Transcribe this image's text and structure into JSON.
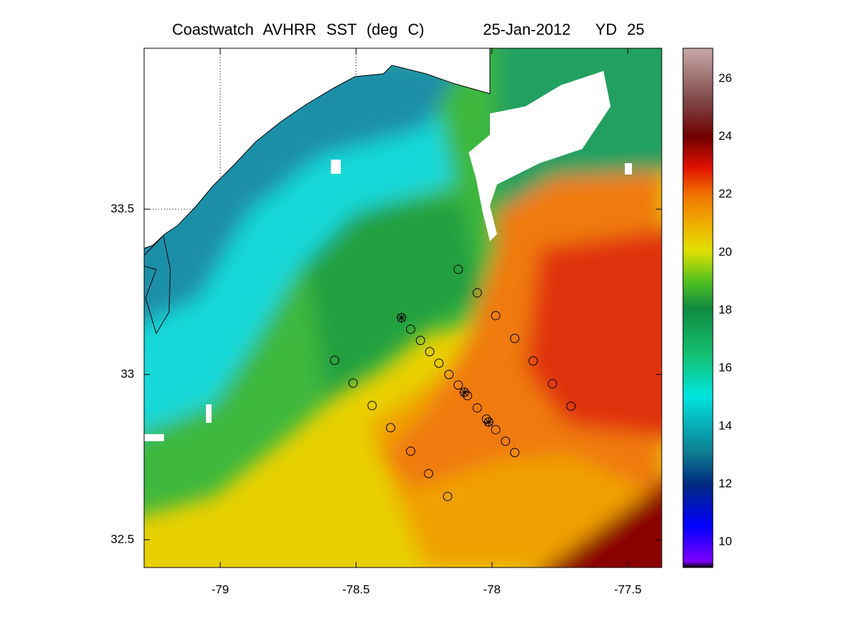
{
  "chart_data": {
    "type": "map",
    "title": "Coastwatch AVHRR SST (deg C)",
    "date": "25-Jan-2012",
    "yearday": "YD 25",
    "xlim": [
      -79.28,
      -77.375
    ],
    "ylim": [
      32.416,
      33.987
    ],
    "xticks": [
      -79,
      -78.5,
      -78,
      -77.5
    ],
    "yticks": [
      32.5,
      33,
      33.5
    ],
    "grid": "dotted",
    "colorbar": {
      "lim": [
        9.12,
        27.05
      ],
      "ticks": [
        10,
        12,
        14,
        16,
        18,
        20,
        22,
        24,
        26
      ]
    },
    "series": [
      {
        "marker": "circle",
        "color": "#000000",
        "x": [
          -78.124,
          -78.054,
          -77.986,
          -78.299,
          -78.263,
          -78.229,
          -78.195,
          -78.158,
          -78.124,
          -78.09,
          -78.054,
          -78.02,
          -77.986,
          -77.95,
          -77.916,
          -77.916,
          -77.848,
          -77.777,
          -77.709,
          -78.579,
          -78.511,
          -78.441,
          -78.373,
          -78.299,
          -78.233,
          -78.163
        ],
        "y": [
          33.318,
          33.247,
          33.178,
          33.137,
          33.103,
          33.069,
          33.034,
          33.0,
          32.968,
          32.936,
          32.899,
          32.865,
          32.833,
          32.798,
          32.764,
          33.109,
          33.041,
          32.972,
          32.904,
          33.043,
          32.974,
          32.906,
          32.839,
          32.768,
          32.7,
          32.631
        ]
      },
      {
        "marker": "star",
        "color": "#000000",
        "x": [
          -78.333,
          -78.101,
          -78.012
        ],
        "y": [
          33.172,
          32.946,
          32.856
        ]
      }
    ]
  }
}
